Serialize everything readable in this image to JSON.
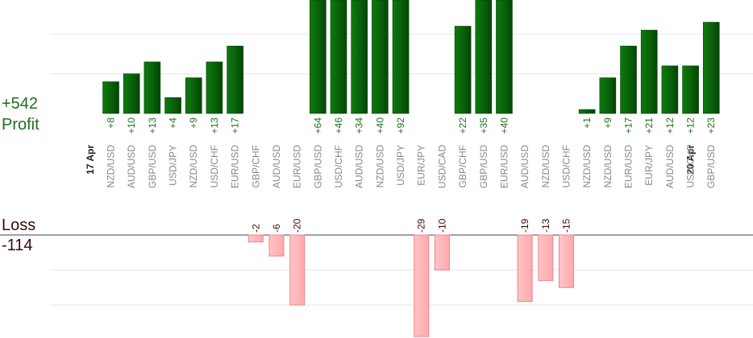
{
  "colors": {
    "profit": "#0b6b0b",
    "profit_dark": "#034503",
    "loss_fill": "#ffb5b8",
    "loss_stroke": "#e8878b",
    "profit_text": "#1e6e1e",
    "loss_text": "#3a0a0a",
    "grid": "#e6e6e6",
    "baseline": "#444444"
  },
  "summary": {
    "profit_total": "+542",
    "profit_label": "Profit",
    "loss_label": "Loss",
    "loss_total": "-114"
  },
  "chart_data": {
    "type": "bar",
    "date_markers": [
      {
        "label": "17 Apr",
        "slot": 0
      },
      {
        "label": "20 Apr",
        "slot": 29
      }
    ],
    "categories": [
      "NZD/USD",
      "AUD/USD",
      "GBP/USD",
      "USD/JPY",
      "NZD/USD",
      "USD/CHF",
      "EUR/USD",
      "GBP/CHF",
      "AUD/USD",
      "EUR/USD",
      "GBP/USD",
      "USD/CHF",
      "AUD/USD",
      "NZD/USD",
      "USD/JPY",
      "EUR/JPY",
      "USD/CAD",
      "GBP/CHF",
      "GBP/USD",
      "EUR/USD",
      "AUD/USD",
      "NZD/USD",
      "USD/CHF",
      "NZD/USD",
      "NZD/USD",
      "EUR/USD",
      "EUR/JPY",
      "AUD/USD",
      "USD/CHF",
      "GBP/USD"
    ],
    "slots": [
      1,
      2,
      3,
      4,
      5,
      6,
      7,
      8,
      9,
      10,
      11,
      12,
      13,
      14,
      15,
      16,
      17,
      18,
      19,
      20,
      21,
      22,
      23,
      24,
      25,
      26,
      27,
      28,
      29,
      30,
      31,
      32,
      33,
      34,
      35,
      36
    ],
    "values": [
      8,
      10,
      13,
      4,
      9,
      13,
      17,
      -2,
      -6,
      -20,
      64,
      46,
      34,
      40,
      92,
      -29,
      -10,
      22,
      35,
      40,
      -19,
      -13,
      -15,
      1,
      9,
      17,
      21,
      12,
      12,
      23
    ],
    "value_labels": [
      "+8",
      "+10",
      "+13",
      "+4",
      "+9",
      "+13",
      "+17",
      "-2",
      "-6",
      "-20",
      "+64",
      "+46",
      "+34",
      "+40",
      "+92",
      "-29",
      "-10",
      "+22",
      "+35",
      "+40",
      "-19",
      "-13",
      "-15",
      "+1",
      "+9",
      "+17",
      "+21",
      "+12",
      "+12",
      "+23"
    ],
    "profit_ylim": [
      0,
      29
    ],
    "loss_ylim": [
      -26,
      0
    ],
    "grid": true
  }
}
